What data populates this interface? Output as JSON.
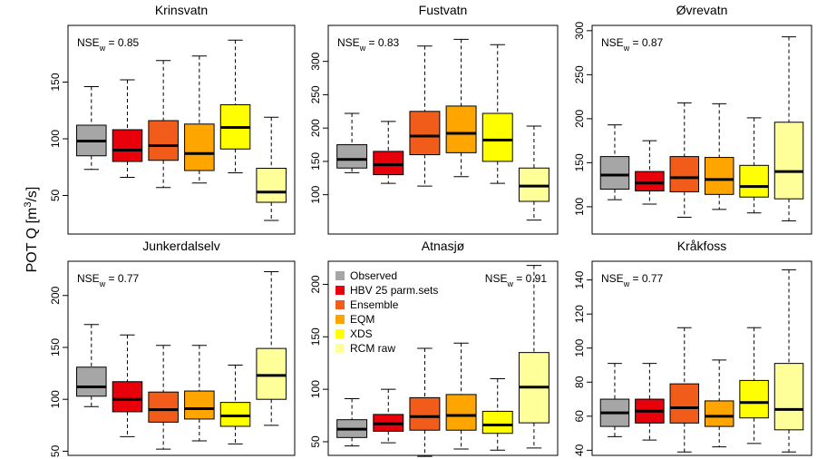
{
  "ylabel": {
    "main": "POT Q [m",
    "sup": "3",
    "rest": "/s]"
  },
  "legend": [
    {
      "name": "Observed",
      "color": "#a6a6a6"
    },
    {
      "name": "HBV 25 parm.sets",
      "color": "#e8000b"
    },
    {
      "name": "Ensemble",
      "color": "#f25c1b"
    },
    {
      "name": "EQM",
      "color": "#ffa500"
    },
    {
      "name": "XDS",
      "color": "#ffff00"
    },
    {
      "name": "RCM raw",
      "color": "#ffff99"
    }
  ],
  "chart_data": [
    {
      "type": "box",
      "title": "Krinsvatn",
      "annotation": {
        "main": "NSE",
        "sub": "w",
        "rest": " = 0.85"
      },
      "ylim": [
        16,
        200
      ],
      "yticks": [
        50,
        100,
        150
      ],
      "boxes": [
        [
          73,
          85,
          98,
          112,
          146
        ],
        [
          66,
          80,
          90,
          108,
          152
        ],
        [
          57,
          81,
          94,
          116,
          169
        ],
        [
          61,
          72,
          87,
          113,
          173
        ],
        [
          70,
          91,
          110,
          130,
          187
        ],
        [
          28,
          44,
          53,
          74,
          119
        ]
      ]
    },
    {
      "type": "box",
      "title": "Fustvatn",
      "annotation": {
        "main": "NSE",
        "sub": "w",
        "rest": " = 0.83"
      },
      "ylim": [
        41,
        354
      ],
      "yticks": [
        100,
        150,
        200,
        250,
        300
      ],
      "boxes": [
        [
          133,
          140,
          153,
          175,
          222
        ],
        [
          117,
          130,
          145,
          165,
          210
        ],
        [
          113,
          160,
          188,
          225,
          323
        ],
        [
          127,
          163,
          192,
          233,
          333
        ],
        [
          117,
          150,
          182,
          222,
          325
        ],
        [
          62,
          90,
          113,
          140,
          203
        ]
      ]
    },
    {
      "type": "box",
      "title": "Øvrevatn",
      "annotation": {
        "main": "NSE",
        "sub": "w",
        "rest": " = 0.87"
      },
      "ylim": [
        69,
        306
      ],
      "yticks": [
        100,
        150,
        200,
        250,
        300
      ],
      "boxes": [
        [
          108,
          120,
          136,
          157,
          193
        ],
        [
          103,
          118,
          127,
          140,
          175
        ],
        [
          88,
          117,
          133,
          157,
          218
        ],
        [
          97,
          114,
          131,
          156,
          217
        ],
        [
          93,
          111,
          123,
          147,
          201
        ],
        [
          84,
          109,
          140,
          196,
          293
        ]
      ]
    },
    {
      "type": "box",
      "title": "Junkerdalselv",
      "annotation": {
        "main": "NSE",
        "sub": "w",
        "rest": " = 0.77"
      },
      "ylim": [
        46,
        233
      ],
      "yticks": [
        50,
        100,
        150,
        200
      ],
      "boxes": [
        [
          93,
          103,
          112,
          131,
          172
        ],
        [
          64,
          88,
          100,
          117,
          162
        ],
        [
          52,
          78,
          90,
          107,
          152
        ],
        [
          60,
          81,
          91,
          108,
          152
        ],
        [
          57,
          74,
          84,
          97,
          133
        ],
        [
          75,
          100,
          123,
          149,
          223
        ]
      ]
    },
    {
      "type": "box",
      "title": "Atnasjø",
      "annotation": {
        "main": "NSE",
        "sub": "w",
        "rest": " = 0.91"
      },
      "ylim": [
        37,
        222
      ],
      "yticks": [
        50,
        100,
        150,
        200
      ],
      "boxes": [
        [
          46,
          54,
          62,
          71,
          91
        ],
        [
          49,
          60,
          67,
          76,
          100
        ],
        [
          36,
          61,
          74,
          92,
          139
        ],
        [
          43,
          61,
          75,
          95,
          144
        ],
        [
          42,
          58,
          66,
          79,
          110
        ],
        [
          44,
          68,
          102,
          135,
          218
        ]
      ]
    },
    {
      "type": "box",
      "title": "Kråkfoss",
      "annotation": {
        "main": "NSE",
        "sub": "w",
        "rest": " = 0.77"
      },
      "ylim": [
        37,
        151
      ],
      "yticks": [
        40,
        60,
        80,
        100,
        120,
        140
      ],
      "boxes": [
        [
          48,
          54,
          62,
          70,
          91
        ],
        [
          46,
          56,
          63,
          70,
          91
        ],
        [
          39,
          56,
          65,
          79,
          112
        ],
        [
          42,
          54,
          60,
          69,
          93
        ],
        [
          44,
          59,
          68,
          81,
          112
        ],
        [
          39,
          52,
          64,
          91,
          146
        ]
      ]
    }
  ]
}
